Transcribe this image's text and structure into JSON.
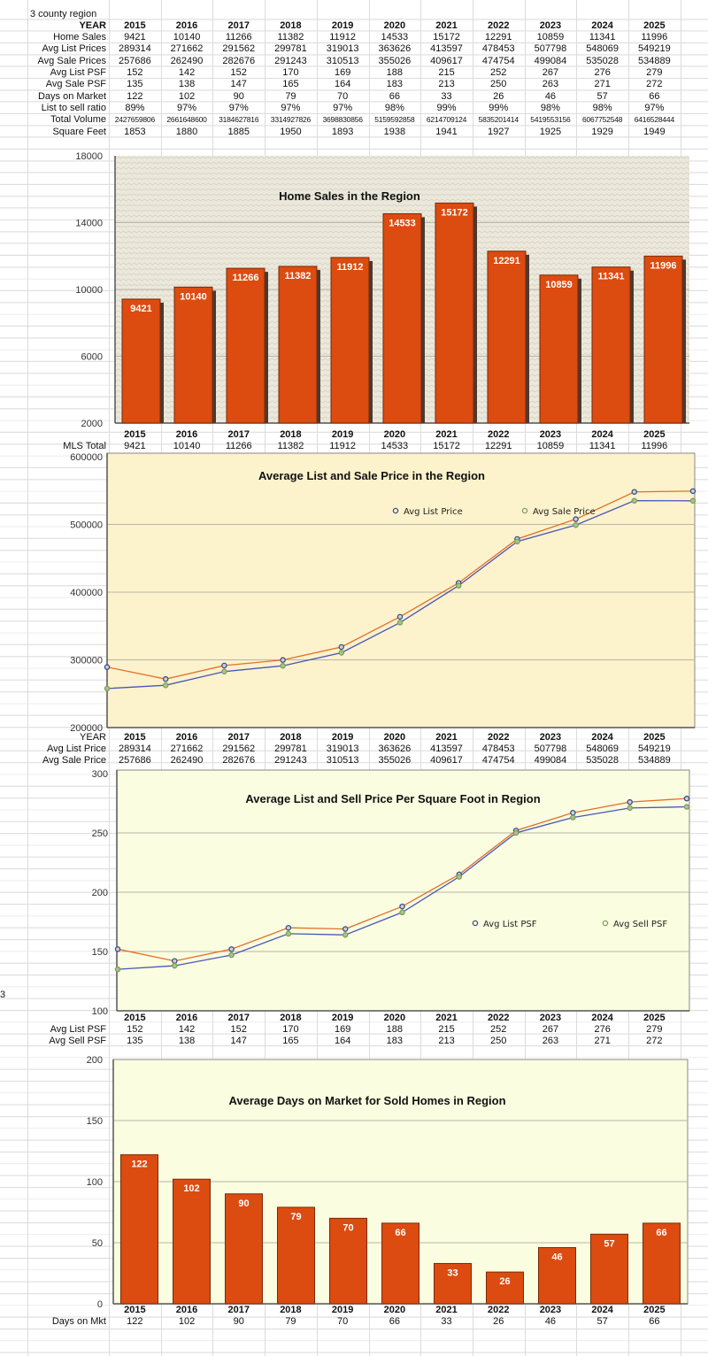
{
  "sheet": {
    "region_label": "3 county region",
    "stray_cell": "3",
    "years": [
      "2015",
      "2016",
      "2017",
      "2018",
      "2019",
      "2020",
      "2021",
      "2022",
      "2023",
      "2024",
      "2025"
    ],
    "main_table": [
      {
        "label": "YEAR",
        "bold": true,
        "values": [
          "2015",
          "2016",
          "2017",
          "2018",
          "2019",
          "2020",
          "2021",
          "2022",
          "2023",
          "2024",
          "2025"
        ]
      },
      {
        "label": "Home Sales",
        "values": [
          "9421",
          "10140",
          "11266",
          "11382",
          "11912",
          "14533",
          "15172",
          "12291",
          "10859",
          "11341",
          "11996"
        ]
      },
      {
        "label": "Avg List Prices",
        "values": [
          "289314",
          "271662",
          "291562",
          "299781",
          "319013",
          "363626",
          "413597",
          "478453",
          "507798",
          "548069",
          "549219"
        ]
      },
      {
        "label": "Avg Sale Prices",
        "values": [
          "257686",
          "262490",
          "282676",
          "291243",
          "310513",
          "355026",
          "409617",
          "474754",
          "499084",
          "535028",
          "534889"
        ]
      },
      {
        "label": "Avg List PSF",
        "values": [
          "152",
          "142",
          "152",
          "170",
          "169",
          "188",
          "215",
          "252",
          "267",
          "276",
          "279"
        ]
      },
      {
        "label": "Avg Sale PSF",
        "values": [
          "135",
          "138",
          "147",
          "165",
          "164",
          "183",
          "213",
          "250",
          "263",
          "271",
          "272"
        ]
      },
      {
        "label": "Days on Market",
        "values": [
          "122",
          "102",
          "90",
          "79",
          "70",
          "66",
          "33",
          "26",
          "46",
          "57",
          "66"
        ]
      },
      {
        "label": "List to sell ratio",
        "values": [
          "89%",
          "97%",
          "97%",
          "97%",
          "97%",
          "98%",
          "99%",
          "99%",
          "98%",
          "98%",
          "97%"
        ]
      },
      {
        "label": "Total Volume",
        "small": true,
        "values": [
          "2427659806",
          "2661648600",
          "3184627816",
          "3314927826",
          "3698830856",
          "5159592858",
          "6214709124",
          "5835201414",
          "5419553156",
          "6067752548",
          "6416528444"
        ]
      },
      {
        "label": "Square Feet",
        "values": [
          "1853",
          "1880",
          "1885",
          "1950",
          "1893",
          "1938",
          "1941",
          "1927",
          "1925",
          "1929",
          "1949"
        ]
      }
    ],
    "sales_table": [
      {
        "label": "",
        "bold": true,
        "values": [
          "2015",
          "2016",
          "2017",
          "2018",
          "2019",
          "2020",
          "2021",
          "2022",
          "2023",
          "2024",
          "2025"
        ]
      },
      {
        "label": "MLS Total",
        "values": [
          "9421",
          "10140",
          "11266",
          "11382",
          "11912",
          "14533",
          "15172",
          "12291",
          "10859",
          "11341",
          "11996"
        ]
      }
    ],
    "price_table": [
      {
        "label": "YEAR",
        "boldvals": true,
        "values": [
          "2015",
          "2016",
          "2017",
          "2018",
          "2019",
          "2020",
          "2021",
          "2022",
          "2023",
          "2024",
          "2025"
        ]
      },
      {
        "label": "Avg List Price",
        "values": [
          "289314",
          "271662",
          "291562",
          "299781",
          "319013",
          "363626",
          "413597",
          "478453",
          "507798",
          "548069",
          "549219"
        ]
      },
      {
        "label": "Avg Sale Price",
        "values": [
          "257686",
          "262490",
          "282676",
          "291243",
          "310513",
          "355026",
          "409617",
          "474754",
          "499084",
          "535028",
          "534889"
        ]
      }
    ],
    "psf_table": [
      {
        "label": "",
        "bold": true,
        "values": [
          "2015",
          "2016",
          "2017",
          "2018",
          "2019",
          "2020",
          "2021",
          "2022",
          "2023",
          "2024",
          "2025"
        ]
      },
      {
        "label": "Avg List PSF",
        "values": [
          "152",
          "142",
          "152",
          "170",
          "169",
          "188",
          "215",
          "252",
          "267",
          "276",
          "279"
        ]
      },
      {
        "label": "Avg Sell PSF",
        "values": [
          "135",
          "138",
          "147",
          "165",
          "164",
          "183",
          "213",
          "250",
          "263",
          "271",
          "272"
        ]
      }
    ],
    "dom_table": [
      {
        "label": "",
        "bold": true,
        "values": [
          "2015",
          "2016",
          "2017",
          "2018",
          "2019",
          "2020",
          "2021",
          "2022",
          "2023",
          "2024",
          "2025"
        ]
      },
      {
        "label": "Days on Mkt",
        "values": [
          "122",
          "102",
          "90",
          "79",
          "70",
          "66",
          "33",
          "26",
          "46",
          "57",
          "66"
        ]
      }
    ]
  },
  "colors": {
    "bar": "#dc4b10",
    "bar_border": "#7a2a08",
    "list_line": "#e0702a",
    "sale_line": "#4a56b8",
    "list_marker": "#3c4f7c",
    "sale_marker": "#7ba05a",
    "price_bg": "#fcf2cc",
    "psf_bg": "#fafde0",
    "sales_bg": "#ebe8dc"
  },
  "chart_data": [
    {
      "type": "bar",
      "title": "Home Sales in the Region",
      "categories": [
        "2015",
        "2016",
        "2017",
        "2018",
        "2019",
        "2020",
        "2021",
        "2022",
        "2023",
        "2024",
        "2025"
      ],
      "values": [
        9421,
        10140,
        11266,
        11382,
        11912,
        14533,
        15172,
        12291,
        10859,
        11341,
        11996
      ],
      "ylim": [
        2000,
        18000
      ],
      "yticks": [
        "18000",
        "14000",
        "10000",
        "6000",
        "2000"
      ],
      "grid": true
    },
    {
      "type": "line",
      "title": "Average List and Sale Price in the Region",
      "categories": [
        "2015",
        "2016",
        "2017",
        "2018",
        "2019",
        "2020",
        "2021",
        "2022",
        "2023",
        "2024",
        "2025"
      ],
      "series": [
        {
          "name": "Avg List Price",
          "values": [
            289314,
            271662,
            291562,
            299781,
            319013,
            363626,
            413597,
            478453,
            507798,
            548069,
            549219
          ]
        },
        {
          "name": "Avg Sale Price",
          "values": [
            257686,
            262490,
            282676,
            291243,
            310513,
            355026,
            409617,
            474754,
            499084,
            535028,
            534889
          ]
        }
      ],
      "ylim": [
        200000,
        600000
      ],
      "yticks": [
        "600000",
        "500000",
        "400000",
        "300000",
        "200000"
      ],
      "legend": "top-right",
      "grid": true
    },
    {
      "type": "line",
      "title": "Average List and Sell Price Per Square Foot in Region",
      "categories": [
        "2015",
        "2016",
        "2017",
        "2018",
        "2019",
        "2020",
        "2021",
        "2022",
        "2023",
        "2024",
        "2025"
      ],
      "series": [
        {
          "name": "Avg List PSF",
          "values": [
            152,
            142,
            152,
            170,
            169,
            188,
            215,
            252,
            267,
            276,
            279
          ]
        },
        {
          "name": "Avg Sell PSF",
          "values": [
            135,
            138,
            147,
            165,
            164,
            183,
            213,
            250,
            263,
            271,
            272
          ]
        }
      ],
      "ylim": [
        100,
        300
      ],
      "yticks": [
        "300",
        "250",
        "200",
        "150",
        "100"
      ],
      "legend": "center-right",
      "grid": true
    },
    {
      "type": "bar",
      "title": "Average Days on Market for Sold Homes in Region",
      "categories": [
        "2015",
        "2016",
        "2017",
        "2018",
        "2019",
        "2020",
        "2021",
        "2022",
        "2023",
        "2024",
        "2025"
      ],
      "values": [
        122,
        102,
        90,
        79,
        70,
        66,
        33,
        26,
        46,
        57,
        66
      ],
      "ylim": [
        0,
        200
      ],
      "yticks": [
        "200",
        "150",
        "100",
        "50",
        "0"
      ],
      "grid": true
    }
  ]
}
